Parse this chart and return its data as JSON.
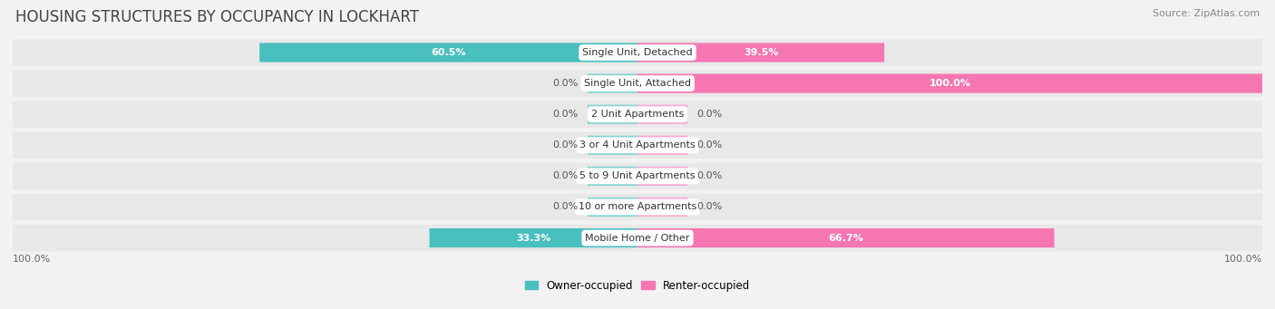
{
  "title": "HOUSING STRUCTURES BY OCCUPANCY IN LOCKHART",
  "source": "Source: ZipAtlas.com",
  "categories": [
    "Single Unit, Detached",
    "Single Unit, Attached",
    "2 Unit Apartments",
    "3 or 4 Unit Apartments",
    "5 to 9 Unit Apartments",
    "10 or more Apartments",
    "Mobile Home / Other"
  ],
  "owner_pct": [
    60.5,
    0.0,
    0.0,
    0.0,
    0.0,
    0.0,
    33.3
  ],
  "renter_pct": [
    39.5,
    100.0,
    0.0,
    0.0,
    0.0,
    0.0,
    66.7
  ],
  "owner_color": "#49bfbe",
  "renter_color": "#f576b0",
  "owner_stub_color": "#82d4d3",
  "renter_stub_color": "#f9a8d1",
  "bg_color": "#f2f2f2",
  "row_bg_color": "#e8e8e8",
  "title_fontsize": 12,
  "label_fontsize": 8,
  "category_fontsize": 8,
  "source_fontsize": 8,
  "legend_fontsize": 8.5,
  "axis_label_fontsize": 8,
  "bar_height": 0.62,
  "stub_size": 8.0
}
